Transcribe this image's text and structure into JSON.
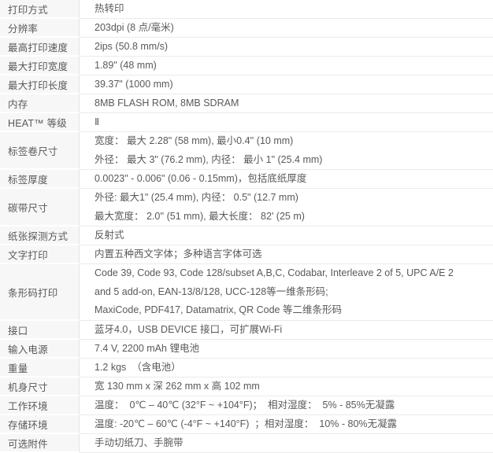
{
  "colors": {
    "label_column_bg": "#f7f7f7",
    "row_divider": "#ebebeb",
    "column_divider": "#e4e4e4",
    "text": "#595959"
  },
  "table": {
    "rows": [
      {
        "label": "打印方式",
        "lines": [
          "热转印"
        ]
      },
      {
        "label": "分辨率",
        "lines": [
          "203dpi (8 点/毫米)"
        ]
      },
      {
        "label": "最高打印速度",
        "lines": [
          "2ips (50.8 mm/s)"
        ]
      },
      {
        "label": "最大打印宽度",
        "lines": [
          "1.89\" (48 mm)"
        ]
      },
      {
        "label": "最大打印长度",
        "lines": [
          "39.37\" (1000 mm)"
        ]
      },
      {
        "label": "内存",
        "lines": [
          "8MB FLASH ROM, 8MB SDRAM"
        ]
      },
      {
        "label": "HEAT™ 等级",
        "lines": [
          "Ⅱ"
        ]
      },
      {
        "label": "标签卷尺寸",
        "lines": [
          "宽度： 最大 2.28\" (58 mm), 最小0.4'' (10 mm)",
          "外径： 最大 3\" (76.2 mm), 内径： 最小 1\" (25.4 mm)"
        ]
      },
      {
        "label": "标签厚度",
        "lines": [
          "0.0023\" - 0.006\" (0.06 - 0.15mm)，包括底纸厚度"
        ]
      },
      {
        "label": "碳带尺寸",
        "lines": [
          "外径: 最大1\" (25.4 mm), 内径： 0.5\" (12.7 mm)",
          "最大宽度： 2.0'' (51 mm), 最大长度： 82' (25 m)"
        ]
      },
      {
        "label": "纸张探测方式",
        "lines": [
          "反射式"
        ]
      },
      {
        "label": "文字打印",
        "lines": [
          "内置五种西文字体；多种语言字体可选"
        ]
      },
      {
        "label": "条形码打印",
        "lines": [
          "Code 39, Code 93, Code 128/subset A,B,C, Codabar, Interleave 2 of 5, UPC A/E 2",
          "and 5 add-on, EAN-13/8/128, UCC-128等一维条形码;",
          "MaxiCode, PDF417, Datamatrix, QR Code 等二维条形码"
        ]
      },
      {
        "label": "接口",
        "lines": [
          "蓝牙4.0，USB DEVICE 接口，可扩展Wi-Fi"
        ]
      },
      {
        "label": "输入电源",
        "lines": [
          "7.4 V, 2200 mAh 锂电池"
        ]
      },
      {
        "label": "重量",
        "lines": [
          "1.2 kgs  （含电池）"
        ]
      },
      {
        "label": "机身尺寸",
        "lines": [
          "宽 130 mm x 深 262 mm x 高 102 mm"
        ]
      },
      {
        "label": "工作环境",
        "lines": [
          "温度：  0℃ – 40℃ (32°F ~ +104°F)；  相对湿度：  5% - 85%无凝露"
        ]
      },
      {
        "label": "存储环境",
        "lines": [
          "温度: -20℃ – 60℃ (-4°F ~ +140°F)  ；相对湿度：  10% - 80%无凝露"
        ]
      },
      {
        "label": "可选附件",
        "lines": [
          "手动切纸刀、手腕带"
        ]
      }
    ]
  }
}
